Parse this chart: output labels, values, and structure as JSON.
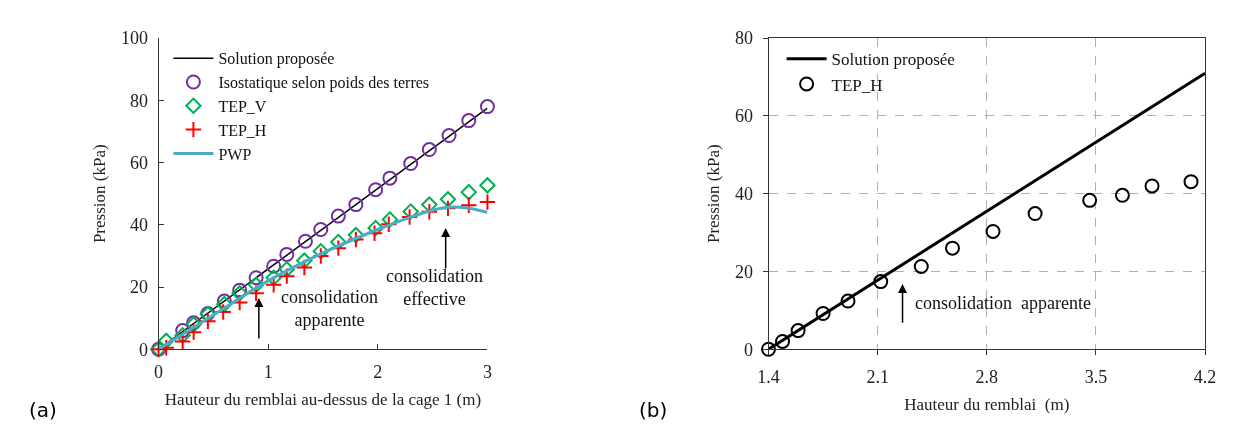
{
  "chart_data": [
    {
      "type": "scatter",
      "xlabel": "Hauteur du remblai au-dessus de la cage 1 (m)",
      "ylabel": "Pression (kPa)",
      "xlim": [
        0,
        3
      ],
      "ylim": [
        0,
        100
      ],
      "xticks": [
        0,
        1,
        2,
        3
      ],
      "yticks": [
        0,
        20,
        40,
        60,
        80,
        100
      ],
      "grid": false,
      "legend": "top left",
      "series": [
        {
          "name": "Solution proposée",
          "type": "line",
          "color": "#000000",
          "marker": "none",
          "x": [
            0,
            3
          ],
          "values": [
            0,
            77.5
          ]
        },
        {
          "name": "Isostatique selon poids des terres",
          "color": "#7030a0",
          "marker": "circle",
          "x": [
            0,
            0.22,
            0.32,
            0.45,
            0.6,
            0.74,
            0.89,
            1.05,
            1.17,
            1.34,
            1.48,
            1.64,
            1.8,
            1.98,
            2.11,
            2.3,
            2.47,
            2.65,
            2.83,
            3.0
          ],
          "values": [
            0,
            6,
            8.5,
            11.5,
            15.5,
            19,
            23,
            26.7,
            30.5,
            34.7,
            38.5,
            42.8,
            46.5,
            51.3,
            55,
            59.7,
            64.2,
            68.7,
            73.5,
            78
          ]
        },
        {
          "name": "TEP_V",
          "color": "#00b050",
          "marker": "diamond",
          "x": [
            0,
            0.07,
            0.22,
            0.32,
            0.45,
            0.6,
            0.74,
            0.89,
            1.05,
            1.17,
            1.33,
            1.48,
            1.64,
            1.8,
            1.98,
            2.11,
            2.3,
            2.47,
            2.64,
            2.83,
            3.0
          ],
          "values": [
            0,
            2.7,
            4.5,
            8,
            11.3,
            14.5,
            18,
            20.7,
            23,
            25.7,
            28.5,
            31.5,
            34.5,
            36.7,
            39,
            41.7,
            44.3,
            46.5,
            48.2,
            50.5,
            52.7
          ]
        },
        {
          "name": "TEP_H",
          "color": "#ff0000",
          "marker": "cross",
          "x": [
            0,
            0.07,
            0.22,
            0.32,
            0.45,
            0.59,
            0.74,
            0.89,
            1.05,
            1.17,
            1.33,
            1.48,
            1.64,
            1.8,
            1.97,
            2.1,
            2.29,
            2.47,
            2.64,
            2.83,
            3.0
          ],
          "values": [
            0,
            0.5,
            2.5,
            5.5,
            9,
            12,
            15,
            18,
            20.7,
            23.5,
            26.3,
            30,
            32.5,
            35.3,
            37.3,
            40.2,
            42.5,
            44.2,
            45.3,
            46.3,
            47.3
          ]
        },
        {
          "name": "PWP",
          "type": "line",
          "color": "#4bacc6",
          "marker": "none",
          "x": [
            0,
            0.5,
            1,
            1.5,
            2,
            2.3,
            2.6,
            2.8,
            3
          ],
          "values": [
            0,
            11,
            22,
            31,
            38.5,
            42.5,
            45.5,
            45.5,
            44
          ]
        }
      ],
      "annotations": [
        "consolidation\napparente",
        "consolidation\neffective",
        "(a)"
      ]
    },
    {
      "type": "scatter",
      "xlabel": "Hauteur du remblai  (m)",
      "ylabel": "Pression (kPa)",
      "xlim": [
        1.4,
        4.2
      ],
      "ylim": [
        0,
        80
      ],
      "xticks": [
        1.4,
        2.1,
        2.8,
        3.5,
        4.2
      ],
      "yticks": [
        0,
        20,
        40,
        60,
        80
      ],
      "grid": true,
      "legend": "top left",
      "series": [
        {
          "name": "Solution proposée",
          "type": "line",
          "color": "#000000",
          "marker": "none",
          "x": [
            1.4,
            4.2
          ],
          "values": [
            0,
            71
          ]
        },
        {
          "name": "TEP_H",
          "color": "#000000",
          "marker": "circle",
          "x": [
            1.4,
            1.49,
            1.59,
            1.75,
            1.91,
            2.12,
            2.38,
            2.58,
            2.84,
            3.11,
            3.46,
            3.67,
            3.86,
            4.11
          ],
          "values": [
            0,
            2,
            4.8,
            9.2,
            12.4,
            17.4,
            21.3,
            26,
            30.3,
            34.9,
            38.3,
            39.6,
            42,
            43.1
          ]
        }
      ],
      "annotations": [
        "consolidation  apparente",
        "(b)"
      ]
    }
  ]
}
